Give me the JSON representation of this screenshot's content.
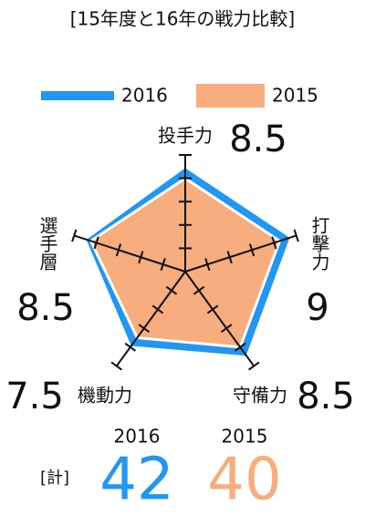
{
  "chart_data": {
    "type": "radar",
    "title": "[15年度と16年の戦力比較]",
    "categories": [
      "投手力",
      "打撃力",
      "守備力",
      "機動力",
      "選手層"
    ],
    "series": [
      {
        "name": "2016",
        "color": "#2196f3",
        "values": [
          8.5,
          9,
          8.5,
          7.5,
          8.5
        ]
      },
      {
        "name": "2015",
        "color": "#f7ad7e",
        "values": [
          8,
          8.5,
          8,
          7,
          8.5
        ]
      }
    ],
    "rlim": [
      0,
      10
    ],
    "rticks": [
      2,
      4,
      6,
      8,
      10
    ],
    "total_label": "[計]",
    "totals": [
      42,
      40
    ]
  }
}
